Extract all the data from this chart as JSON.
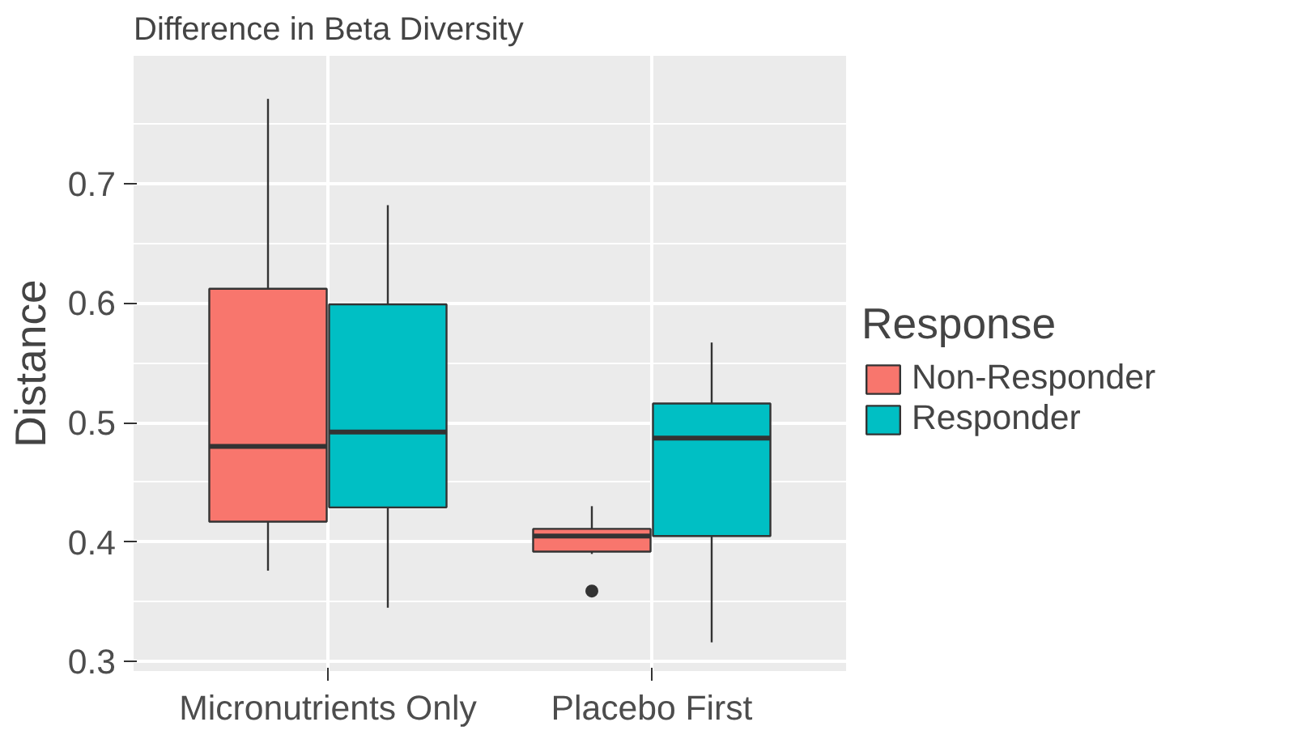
{
  "chart_data": {
    "type": "box",
    "title": "Difference in Beta Diversity",
    "ylabel": "Distance",
    "legend_title": "Response",
    "categories": [
      "Micronutrients Only",
      "Placebo First"
    ],
    "ylim": [
      0.292,
      0.807
    ],
    "yticks": [
      0.3,
      0.4,
      0.5,
      0.6,
      0.7
    ],
    "grid": true,
    "legend": "right",
    "series": [
      {
        "name": "Non-Responder",
        "color": "#f8766d",
        "boxes": [
          {
            "low": 0.376,
            "q1": 0.417,
            "median": 0.48,
            "q3": 0.612,
            "high": 0.771
          },
          {
            "low": 0.39,
            "q1": 0.392,
            "median": 0.405,
            "q3": 0.411,
            "high": 0.43,
            "outliers": [
              0.359
            ]
          }
        ]
      },
      {
        "name": "Responder",
        "color": "#00bfc4",
        "boxes": [
          {
            "low": 0.345,
            "q1": 0.429,
            "median": 0.492,
            "q3": 0.599,
            "high": 0.682
          },
          {
            "low": 0.316,
            "q1": 0.405,
            "median": 0.487,
            "q3": 0.516,
            "high": 0.567
          }
        ]
      }
    ]
  }
}
